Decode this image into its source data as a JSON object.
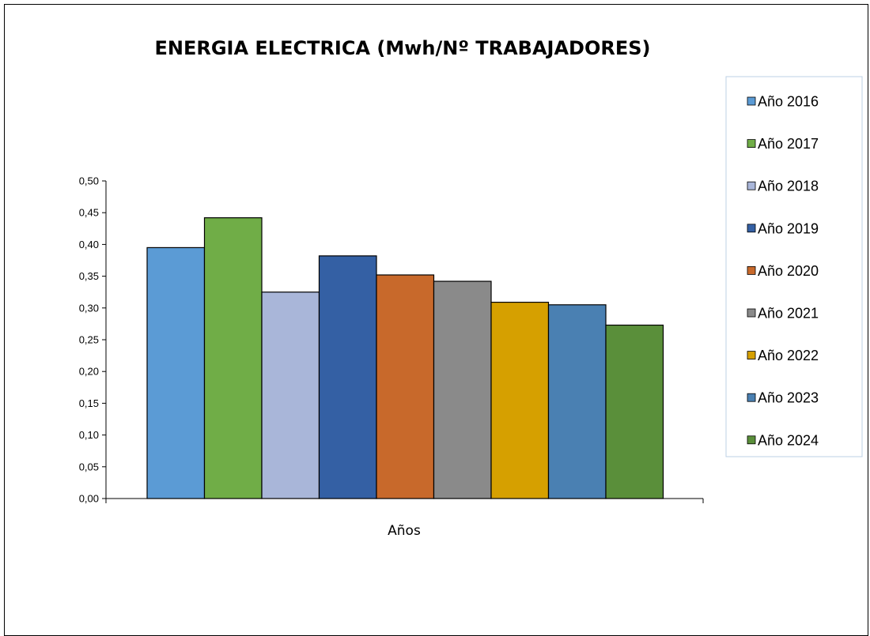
{
  "chart_data": {
    "type": "bar",
    "title": "ENERGIA ELECTRICA (Mwh/Nº TRABAJADORES)",
    "xlabel": "Años",
    "ylabel": "",
    "categories": [
      "Años"
    ],
    "ylim": [
      0,
      0.5
    ],
    "yticks": [
      "0,00",
      "0,05",
      "0,10",
      "0,15",
      "0,20",
      "0,25",
      "0,30",
      "0,35",
      "0,40",
      "0,45",
      "0,50"
    ],
    "grid": false,
    "legend_position": "right",
    "series": [
      {
        "name": "Año 2016",
        "values": [
          0.395
        ],
        "color": "#5b9bd5"
      },
      {
        "name": "Año 2017",
        "values": [
          0.442
        ],
        "color": "#70ad47"
      },
      {
        "name": "Año 2018",
        "values": [
          0.325
        ],
        "color": "#a9b6d9"
      },
      {
        "name": "Año 2019",
        "values": [
          0.382
        ],
        "color": "#3460a4"
      },
      {
        "name": "Año 2020",
        "values": [
          0.352
        ],
        "color": "#c8692b"
      },
      {
        "name": "Año 2021",
        "values": [
          0.342
        ],
        "color": "#8a8a8a"
      },
      {
        "name": "Año 2022",
        "values": [
          0.309
        ],
        "color": "#d6a000"
      },
      {
        "name": "Año 2023",
        "values": [
          0.305
        ],
        "color": "#4a80b2"
      },
      {
        "name": "Año 2024",
        "values": [
          0.273
        ],
        "color": "#5a8f3a"
      }
    ]
  }
}
